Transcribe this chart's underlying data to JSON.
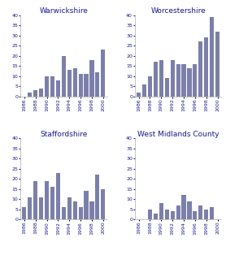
{
  "years": [
    1986,
    1987,
    1988,
    1989,
    1990,
    1991,
    1992,
    1993,
    1994,
    1995,
    1996,
    1997,
    1998,
    1999,
    2000
  ],
  "warwickshire": [
    0,
    2,
    3,
    4,
    10,
    10,
    8,
    20,
    13,
    14,
    11,
    11,
    18,
    12,
    23
  ],
  "worcestershire": [
    2,
    6,
    10,
    17,
    18,
    9,
    18,
    16,
    16,
    14,
    16,
    27,
    29,
    39,
    32
  ],
  "staffordshire": [
    6,
    11,
    19,
    11,
    19,
    16,
    23,
    6,
    11,
    9,
    6,
    14,
    9,
    22,
    15
  ],
  "west_midlands": [
    0,
    0,
    5,
    3,
    8,
    5,
    4,
    7,
    12,
    9,
    4,
    7,
    5,
    6,
    0
  ],
  "bar_color": "#7b7faa",
  "titles": [
    "Warwickshire",
    "Worcestershire",
    "Staffordshire",
    "West Midlands County"
  ],
  "ylim": [
    0,
    40
  ],
  "yticks": [
    0,
    5,
    10,
    15,
    20,
    25,
    30,
    35,
    40
  ],
  "xtick_years": [
    1986,
    1988,
    1990,
    1992,
    1994,
    1996,
    1998,
    2000
  ],
  "title_fontsize": 6.5,
  "tick_fontsize": 4.5,
  "fig_width": 2.78,
  "fig_height": 3.14,
  "dpi": 100
}
